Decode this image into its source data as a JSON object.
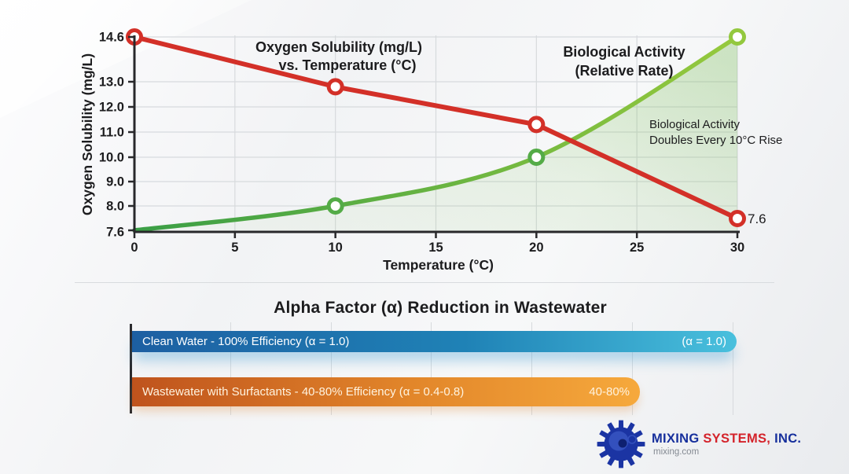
{
  "chart_data": [
    {
      "type": "line",
      "title": "Oxygen Solubility vs Temperature with Biological Activity",
      "xlabel": "Temperature (°C)",
      "ylabel": "Oxygen Solubility (mg/L)",
      "xlim": [
        0,
        30
      ],
      "ylim": [
        7.6,
        14.6
      ],
      "xticks": [
        "0",
        "5",
        "10",
        "15",
        "20",
        "25",
        "30"
      ],
      "ytick_values": [
        14.6,
        13.0,
        12.0,
        11.0,
        10.0,
        9.0,
        8.0,
        7.6
      ],
      "ytick_labels": [
        "14.6",
        "13.0",
        "12.0",
        "11.0",
        "10.0",
        "9.0",
        "8.0",
        "7.6"
      ],
      "grid": true,
      "x": [
        0,
        10,
        20,
        30
      ],
      "series": [
        {
          "name": "Oxygen Solubility (mg/L)",
          "color": "#d33028",
          "values": [
            14.6,
            12.8,
            11.3,
            7.6
          ],
          "smooth": false,
          "marker_color": "#d33028",
          "label_lines": [
            "Oxygen Solubility (mg/L)",
            "vs. Temperature (°C)"
          ],
          "end_value_label": "7.6"
        },
        {
          "name": "Biological Activity (Relative Rate)",
          "color_gradient": [
            "#3a9e46",
            "#96c93d"
          ],
          "fill_tint": "#7fbf5f",
          "values": [
            7.6,
            8.0,
            10.0,
            14.6
          ],
          "smooth": true,
          "area_fill": true,
          "marker_colors": [
            "#54ab47",
            "#54ab47",
            "#93c83e"
          ],
          "label_lines": [
            "Biological Activity",
            "(Relative Rate)"
          ],
          "note_lines": [
            "Biological Activity",
            "Doubles Every 10°C Rise"
          ]
        }
      ]
    },
    {
      "type": "bar",
      "title": "Alpha Factor (α) Reduction in Wastewater",
      "bars": [
        {
          "label": "Clean Water - 100% Efficiency (α = 1.0)",
          "value_label": "(α = 1.0)",
          "length_pct": 100,
          "gradient": [
            "#1d5fa2",
            "#1f82b6",
            "#49c0dd"
          ],
          "text_color": "#ffffff"
        },
        {
          "label": "Wastewater with Surfactants - 40-80% Efficiency (α = 0.4-0.8)",
          "value_label": "40-80%",
          "length_pct": 84,
          "gradient": [
            "#bf531d",
            "#e2862a",
            "#f6a93c"
          ],
          "text_color": "#fff3df"
        }
      ]
    }
  ],
  "logo": {
    "name_part1": "MIXING",
    "name_part2": "SYSTEMS,",
    "name_part3": "INC.",
    "tagline": "mixing.com",
    "blue": "#162f9c",
    "red": "#d4232b",
    "gear_color": "#1b34a3"
  }
}
